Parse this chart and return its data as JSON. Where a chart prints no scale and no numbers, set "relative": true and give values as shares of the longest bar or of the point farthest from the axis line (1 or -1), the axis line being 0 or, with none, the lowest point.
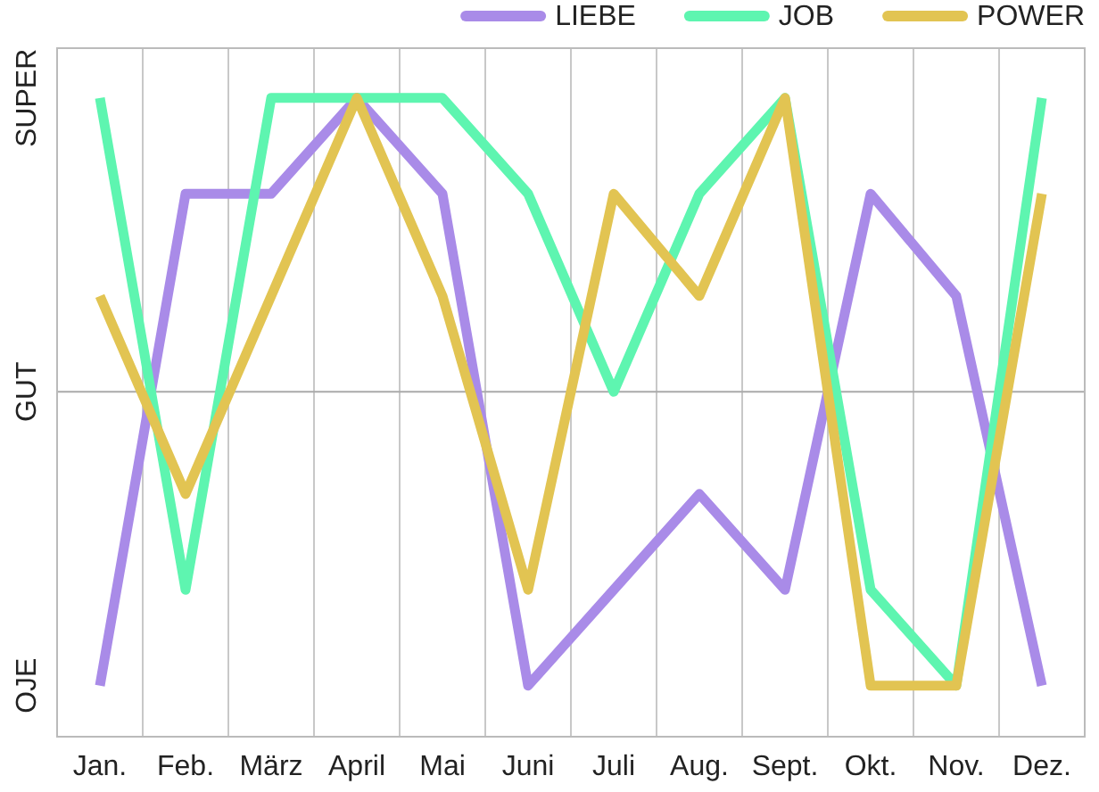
{
  "chart_data": {
    "type": "line",
    "relative": true,
    "categories": [
      "Jan.",
      "Feb.",
      "März",
      "April",
      "Mai",
      "Juni",
      "Juli",
      "Aug.",
      "Sept.",
      "Okt.",
      "Nov.",
      "Dez."
    ],
    "series": [
      {
        "name": "LIEBE",
        "color": "#a98be8",
        "values": [
          0.08,
          0.85,
          0.85,
          1,
          0.85,
          0.08,
          0.23,
          0.38,
          0.23,
          0.85,
          0.69,
          0.08
        ]
      },
      {
        "name": "JOB",
        "color": "#5ef5b0",
        "values": [
          1,
          0.23,
          1,
          1,
          1,
          0.85,
          0.54,
          0.85,
          1,
          0.23,
          0.08,
          1
        ]
      },
      {
        "name": "POWER",
        "color": "#e2c452",
        "values": [
          0.69,
          0.38,
          0.69,
          1,
          0.69,
          0.23,
          0.85,
          0.69,
          1,
          0.08,
          0.08,
          0.85
        ]
      }
    ],
    "annotations": [
      "OJE",
      "SUPER"
    ],
    "grid": "x",
    "ref_lines": [
      {
        "axis": "y",
        "value": 0.54,
        "label": "GUT",
        "color": "#aaaaaa"
      }
    ],
    "legend": "top right",
    "marker": "none",
    "line_style": "solid"
  }
}
